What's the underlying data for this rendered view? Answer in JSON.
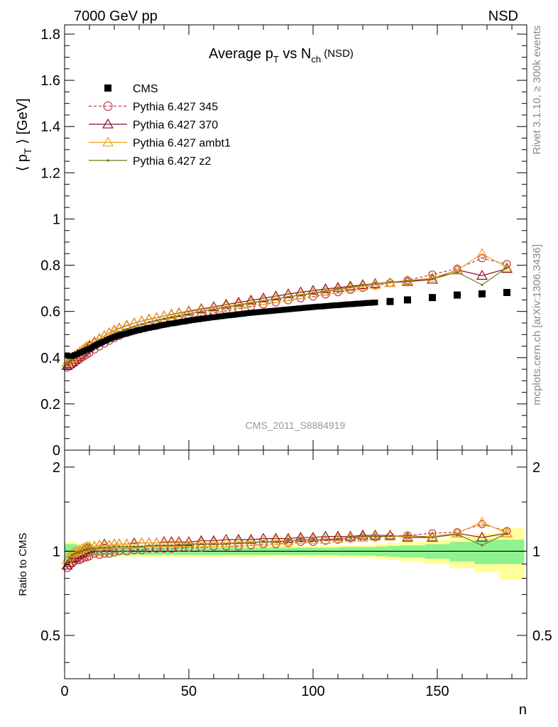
{
  "header": {
    "energy_label": "7000 GeV pp",
    "process_label": "NSD",
    "plot_title": "Average p",
    "plot_title_sub_t": "T",
    "plot_title_mid": " vs N",
    "plot_title_sub_ch": "ch",
    "plot_title_tail": " (NSD)",
    "analysis_id": "CMS_2011_S8884919",
    "rivet_label": "Rivet 3.1.10, ≥ 300k events",
    "mcplots_label": "mcplots.cern.ch [arXiv:1306.3436]"
  },
  "axes": {
    "ylabel_main_pre": "⟨ p",
    "ylabel_main_sub": "T",
    "ylabel_main_post": " ⟩ [GeV]",
    "ylabel_ratio": "Ratio to CMS",
    "xlabel": "n",
    "main_ylim": [
      0,
      1.84
    ],
    "ratio_ylim": [
      0.35,
      2.3
    ],
    "xlim": [
      0,
      186
    ],
    "main_yticks": [
      {
        "v": 0,
        "label": "0"
      },
      {
        "v": 0.2,
        "label": "0.2"
      },
      {
        "v": 0.4,
        "label": "0.4"
      },
      {
        "v": 0.6,
        "label": "0.6"
      },
      {
        "v": 0.8,
        "label": "0.8"
      },
      {
        "v": 1.0,
        "label": "1"
      },
      {
        "v": 1.2,
        "label": "1.2"
      },
      {
        "v": 1.4,
        "label": "1.4"
      },
      {
        "v": 1.6,
        "label": "1.6"
      },
      {
        "v": 1.8,
        "label": "1.8"
      }
    ],
    "ratio_yticks": [
      {
        "v": 0.5,
        "label": "0.5"
      },
      {
        "v": 1.0,
        "label": "1"
      },
      {
        "v": 2.0,
        "label": "2"
      }
    ],
    "xticks": [
      {
        "v": 0,
        "label": "0"
      },
      {
        "v": 50,
        "label": "50"
      },
      {
        "v": 100,
        "label": "100"
      },
      {
        "v": 150,
        "label": "150"
      }
    ]
  },
  "legend": [
    {
      "label": "CMS",
      "marker": "square",
      "color": "#000000",
      "dash": false
    },
    {
      "label": "Pythia 6.427 345",
      "marker": "circle",
      "color": "#c0394b",
      "dash": true
    },
    {
      "label": "Pythia 6.427 370",
      "marker": "triangle",
      "color": "#8b0e25",
      "dash": false
    },
    {
      "label": "Pythia 6.427 ambt1",
      "marker": "triangle",
      "color": "#f0a21a",
      "dash": false
    },
    {
      "label": "Pythia 6.427 z2",
      "marker": "dot",
      "color": "#6b7a18",
      "dash": false
    }
  ],
  "chart_data": {
    "type": "scatter",
    "title": "Average pT vs Nch (NSD)",
    "xlabel": "n",
    "ylabel": "⟨ pT ⟩ [GeV]",
    "xlim": [
      0,
      186
    ],
    "ylim": [
      0,
      1.84
    ],
    "cms": {
      "x": [
        1,
        2,
        3,
        4,
        5,
        6,
        7,
        8,
        9,
        10,
        11,
        12,
        13,
        14,
        15,
        16,
        17,
        18,
        19,
        20,
        21,
        22,
        23,
        24,
        25,
        26,
        27,
        28,
        29,
        30,
        31,
        32,
        33,
        34,
        35,
        36,
        37,
        38,
        39,
        40,
        41,
        42,
        43,
        44,
        45,
        46,
        47,
        48,
        49,
        50,
        51,
        52,
        53,
        54,
        55,
        56,
        57,
        58,
        59,
        60,
        61,
        62,
        63,
        64,
        65,
        66,
        67,
        68,
        69,
        70,
        71,
        72,
        73,
        74,
        75,
        76,
        77,
        78,
        79,
        80,
        81,
        82,
        83,
        84,
        85,
        86,
        87,
        88,
        89,
        90,
        91,
        92,
        93,
        94,
        95,
        96,
        97,
        98,
        99,
        100,
        101,
        102,
        103,
        104,
        105,
        106,
        107,
        108,
        109,
        110,
        111,
        112,
        113,
        114,
        115,
        116,
        117,
        118,
        119,
        120,
        121,
        122,
        123,
        124,
        125,
        131,
        138,
        148,
        158,
        168,
        178
      ],
      "y": [
        0.41,
        0.407,
        0.407,
        0.411,
        0.415,
        0.421,
        0.425,
        0.429,
        0.434,
        0.439,
        0.444,
        0.45,
        0.456,
        0.461,
        0.466,
        0.471,
        0.476,
        0.481,
        0.485,
        0.489,
        0.493,
        0.496,
        0.499,
        0.502,
        0.505,
        0.508,
        0.511,
        0.514,
        0.517,
        0.519,
        0.522,
        0.524,
        0.527,
        0.529,
        0.531,
        0.533,
        0.535,
        0.538,
        0.54,
        0.542,
        0.544,
        0.546,
        0.548,
        0.549,
        0.551,
        0.553,
        0.555,
        0.556,
        0.558,
        0.56,
        0.562,
        0.563,
        0.565,
        0.566,
        0.568,
        0.569,
        0.571,
        0.572,
        0.574,
        0.575,
        0.576,
        0.578,
        0.579,
        0.58,
        0.582,
        0.583,
        0.584,
        0.585,
        0.587,
        0.588,
        0.589,
        0.59,
        0.592,
        0.593,
        0.594,
        0.595,
        0.596,
        0.597,
        0.598,
        0.599,
        0.6,
        0.601,
        0.602,
        0.603,
        0.604,
        0.605,
        0.606,
        0.607,
        0.608,
        0.609,
        0.61,
        0.611,
        0.612,
        0.613,
        0.614,
        0.615,
        0.616,
        0.617,
        0.618,
        0.619,
        0.62,
        0.621,
        0.621,
        0.622,
        0.623,
        0.624,
        0.625,
        0.626,
        0.627,
        0.627,
        0.628,
        0.629,
        0.63,
        0.631,
        0.631,
        0.632,
        0.633,
        0.634,
        0.634,
        0.635,
        0.636,
        0.637,
        0.637,
        0.638,
        0.639,
        0.643,
        0.65,
        0.66,
        0.671,
        0.676,
        0.682
      ]
    },
    "series": [
      {
        "name": "Pythia 6.427 345",
        "x": [
          1,
          2,
          3,
          4,
          5,
          6,
          7,
          8,
          9,
          10,
          12,
          14,
          16,
          18,
          20,
          22,
          25,
          28,
          31,
          34,
          37,
          40,
          43,
          46,
          50,
          55,
          60,
          65,
          70,
          75,
          80,
          85,
          90,
          95,
          100,
          105,
          110,
          115,
          120,
          125,
          131,
          138,
          148,
          158,
          168,
          178
        ],
        "y": [
          0.357,
          0.363,
          0.37,
          0.377,
          0.385,
          0.392,
          0.4,
          0.407,
          0.414,
          0.421,
          0.435,
          0.448,
          0.461,
          0.473,
          0.484,
          0.494,
          0.507,
          0.519,
          0.529,
          0.538,
          0.546,
          0.553,
          0.559,
          0.565,
          0.573,
          0.583,
          0.593,
          0.602,
          0.611,
          0.62,
          0.63,
          0.639,
          0.648,
          0.656,
          0.664,
          0.673,
          0.683,
          0.693,
          0.702,
          0.712,
          0.723,
          0.735,
          0.76,
          0.785,
          0.83,
          0.805
        ],
        "ratio": [
          0.87,
          0.89,
          0.91,
          0.92,
          0.93,
          0.93,
          0.94,
          0.95,
          0.95,
          0.96,
          0.98,
          0.97,
          0.98,
          0.98,
          0.99,
          1.0,
          1.0,
          1.01,
          1.01,
          1.02,
          1.02,
          1.02,
          1.02,
          1.03,
          1.03,
          1.03,
          1.04,
          1.04,
          1.04,
          1.05,
          1.06,
          1.06,
          1.07,
          1.08,
          1.08,
          1.09,
          1.1,
          1.11,
          1.12,
          1.12,
          1.13,
          1.14,
          1.16,
          1.17,
          1.25,
          1.18
        ]
      },
      {
        "name": "Pythia 6.427 370",
        "x": [
          1,
          2,
          3,
          4,
          5,
          6,
          7,
          8,
          9,
          10,
          12,
          14,
          16,
          18,
          20,
          22,
          25,
          28,
          31,
          34,
          37,
          40,
          43,
          46,
          50,
          55,
          60,
          65,
          70,
          75,
          80,
          85,
          90,
          95,
          100,
          105,
          110,
          115,
          120,
          125,
          131,
          138,
          148,
          158,
          168,
          178
        ],
        "y": [
          0.365,
          0.372,
          0.381,
          0.392,
          0.403,
          0.413,
          0.423,
          0.432,
          0.441,
          0.449,
          0.466,
          0.481,
          0.495,
          0.507,
          0.518,
          0.527,
          0.539,
          0.549,
          0.558,
          0.566,
          0.573,
          0.58,
          0.587,
          0.593,
          0.601,
          0.611,
          0.62,
          0.63,
          0.639,
          0.648,
          0.657,
          0.666,
          0.675,
          0.683,
          0.69,
          0.697,
          0.703,
          0.709,
          0.715,
          0.72,
          0.724,
          0.729,
          0.738,
          0.78,
          0.755,
          0.785
        ],
        "ratio": [
          0.89,
          0.91,
          0.94,
          0.95,
          0.97,
          0.98,
          0.99,
          1.01,
          1.02,
          1.02,
          1.04,
          1.05,
          1.06,
          1.05,
          1.06,
          1.06,
          1.06,
          1.07,
          1.07,
          1.07,
          1.07,
          1.08,
          1.08,
          1.08,
          1.08,
          1.09,
          1.09,
          1.1,
          1.1,
          1.1,
          1.11,
          1.11,
          1.11,
          1.12,
          1.12,
          1.13,
          1.13,
          1.13,
          1.14,
          1.14,
          1.14,
          1.12,
          1.12,
          1.16,
          1.12,
          1.16
        ]
      },
      {
        "name": "Pythia 6.427 ambt1",
        "x": [
          1,
          2,
          3,
          4,
          5,
          6,
          7,
          8,
          9,
          10,
          12,
          14,
          16,
          18,
          20,
          22,
          25,
          28,
          31,
          34,
          37,
          40,
          43,
          46,
          50,
          55,
          60,
          65,
          70,
          75,
          80,
          85,
          90,
          95,
          100,
          105,
          110,
          115,
          120,
          125,
          131,
          138,
          148,
          158,
          168,
          178
        ],
        "y": [
          0.38,
          0.389,
          0.398,
          0.407,
          0.416,
          0.425,
          0.433,
          0.441,
          0.449,
          0.456,
          0.47,
          0.483,
          0.495,
          0.506,
          0.516,
          0.525,
          0.537,
          0.548,
          0.557,
          0.565,
          0.572,
          0.579,
          0.585,
          0.591,
          0.598,
          0.607,
          0.615,
          0.623,
          0.631,
          0.639,
          0.647,
          0.655,
          0.663,
          0.67,
          0.678,
          0.686,
          0.694,
          0.701,
          0.709,
          0.716,
          0.724,
          0.733,
          0.745,
          0.778,
          0.85,
          0.79
        ],
        "ratio": [
          0.93,
          0.96,
          0.98,
          0.99,
          1.0,
          1.01,
          1.02,
          1.03,
          1.04,
          1.04,
          1.04,
          1.05,
          1.05,
          1.05,
          1.06,
          1.06,
          1.06,
          1.06,
          1.07,
          1.07,
          1.07,
          1.07,
          1.07,
          1.07,
          1.07,
          1.07,
          1.07,
          1.07,
          1.08,
          1.08,
          1.08,
          1.09,
          1.09,
          1.1,
          1.1,
          1.1,
          1.11,
          1.12,
          1.12,
          1.13,
          1.13,
          1.13,
          1.13,
          1.16,
          1.27,
          1.16
        ]
      },
      {
        "name": "Pythia 6.427 z2",
        "x": [
          1,
          2,
          3,
          4,
          5,
          6,
          7,
          8,
          9,
          10,
          12,
          14,
          16,
          18,
          20,
          22,
          25,
          28,
          31,
          34,
          37,
          40,
          43,
          46,
          50,
          55,
          60,
          65,
          70,
          75,
          80,
          85,
          90,
          95,
          100,
          105,
          110,
          115,
          120,
          125,
          131,
          138,
          148,
          158,
          168,
          178
        ],
        "y": [
          0.378,
          0.386,
          0.394,
          0.402,
          0.41,
          0.418,
          0.425,
          0.432,
          0.439,
          0.446,
          0.459,
          0.471,
          0.482,
          0.493,
          0.503,
          0.512,
          0.524,
          0.535,
          0.545,
          0.554,
          0.562,
          0.569,
          0.576,
          0.582,
          0.59,
          0.6,
          0.609,
          0.618,
          0.627,
          0.636,
          0.645,
          0.654,
          0.663,
          0.671,
          0.68,
          0.688,
          0.697,
          0.705,
          0.713,
          0.72,
          0.727,
          0.732,
          0.74,
          0.77,
          0.715,
          0.79
        ],
        "ratio": [
          0.92,
          0.95,
          0.97,
          0.98,
          0.99,
          0.99,
          1.0,
          1.01,
          1.01,
          1.02,
          1.02,
          1.03,
          1.03,
          1.03,
          1.04,
          1.04,
          1.04,
          1.04,
          1.04,
          1.05,
          1.05,
          1.05,
          1.05,
          1.05,
          1.06,
          1.06,
          1.06,
          1.06,
          1.07,
          1.07,
          1.08,
          1.08,
          1.09,
          1.1,
          1.1,
          1.1,
          1.11,
          1.12,
          1.13,
          1.13,
          1.13,
          1.14,
          1.12,
          1.15,
          1.05,
          1.16
        ]
      }
    ],
    "ratio_bands": {
      "x_edges": [
        0,
        5,
        10,
        20,
        30,
        40,
        50,
        60,
        70,
        80,
        90,
        100,
        110,
        120,
        125,
        130,
        135,
        145,
        155,
        165,
        175,
        185
      ],
      "green_half": [
        0.06,
        0.045,
        0.035,
        0.03,
        0.03,
        0.03,
        0.03,
        0.03,
        0.03,
        0.03,
        0.03,
        0.03,
        0.035,
        0.035,
        0.04,
        0.045,
        0.05,
        0.06,
        0.08,
        0.1,
        0.1
      ],
      "yellow_half": [
        0.08,
        0.06,
        0.05,
        0.045,
        0.045,
        0.045,
        0.045,
        0.045,
        0.045,
        0.045,
        0.045,
        0.05,
        0.05,
        0.055,
        0.06,
        0.07,
        0.08,
        0.1,
        0.13,
        0.16,
        0.21
      ]
    }
  }
}
